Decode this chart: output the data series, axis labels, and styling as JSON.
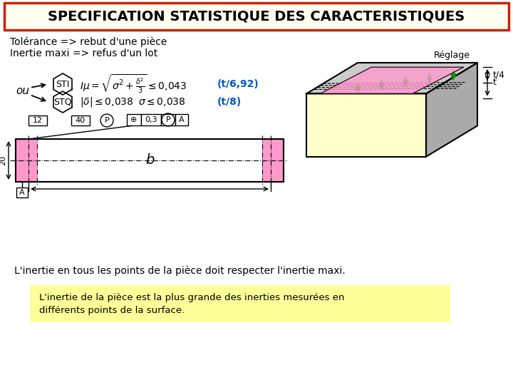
{
  "title": "SPECIFICATION STATISTIQUE DES CARACTERISTIQUES",
  "title_bg": "#fffff0",
  "title_border": "#cc2200",
  "line1": "Tolérance => rebut d'une pièce",
  "line2": "Inertie maxi => refus d'un lot",
  "formula_sti": "STI",
  "formula_stq": "STQ",
  "ou_text": "ou",
  "formula_t692": "(t/6,92)",
  "formula_t8": "(t/8)",
  "dim_12": "12",
  "dim_40": "40",
  "dim_b": "b",
  "dim_20": "20",
  "dim_A": "A",
  "gd_sym": "⊕",
  "gd_val": "0,3",
  "gd_P": "P",
  "gd_A": "A",
  "reglage": "Réglage",
  "note_text": "L'inertie en tous les points de la pièce doit respecter l'inertie maxi.",
  "box_line1": "L'inertie de la pièce est la plus grande des inerties mesurées en",
  "box_line2": "différents points de la surface.",
  "box_bg": "#ffff99",
  "bg_color": "#ffffff",
  "pink_color": "#ff99cc",
  "text_blue": "#0055cc"
}
